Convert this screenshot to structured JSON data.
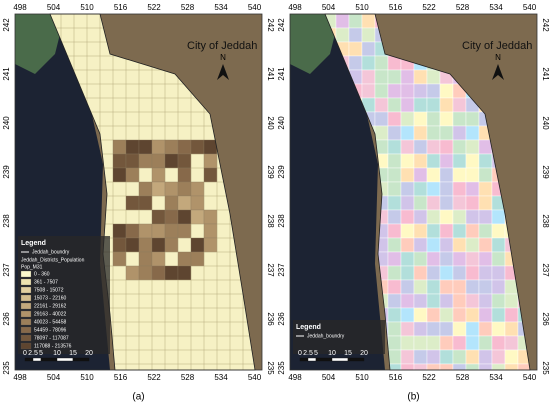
{
  "panels": [
    {
      "caption": "(a)",
      "title": "City of Jeddah",
      "north": "N",
      "x_ticks": [
        498,
        504,
        510,
        516,
        522,
        528,
        534,
        540
      ],
      "y_ticks": [
        242,
        241,
        240,
        239,
        238,
        237,
        236,
        235
      ],
      "legend": {
        "title": "Legend",
        "boundary": "Jeddah_boundry",
        "layer": "Jeddah_Districts_Population",
        "field": "Pop_M31",
        "classes": [
          "0 - 360",
          "361 - 7507",
          "7508 - 15072",
          "15073 - 22160",
          "22161 - 29162",
          "29163 - 40022",
          "40023 - 54458",
          "54459 - 78096",
          "78097 - 117087",
          "117088 - 213576"
        ]
      },
      "scale": [
        "0",
        "2.5",
        "5",
        "10",
        "15",
        "20"
      ]
    },
    {
      "caption": "(b)",
      "title": "City of Jeddah",
      "north": "N",
      "x_ticks": [
        498,
        504,
        510,
        516,
        522,
        528,
        534,
        540
      ],
      "y_ticks": [
        242,
        241,
        240,
        239,
        238,
        237,
        236,
        235
      ],
      "legend": {
        "title": "Legend",
        "boundary": "Jeddah_boundry"
      },
      "scale": [
        "0",
        "2.5",
        "5",
        "10",
        "15",
        "20"
      ]
    }
  ]
}
